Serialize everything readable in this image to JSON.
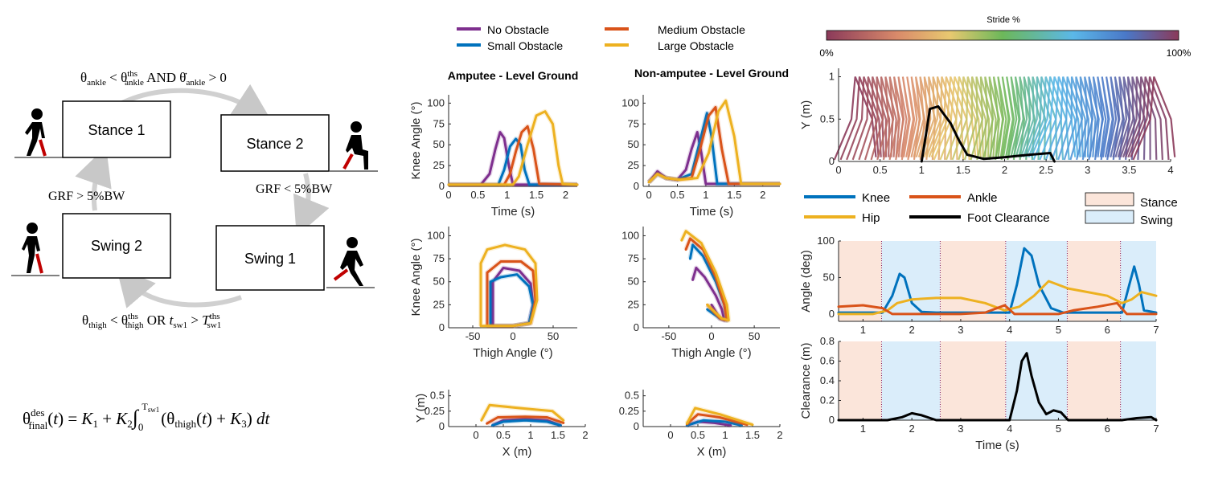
{
  "fsm": {
    "states": [
      "Stance 1",
      "Stance 2",
      "Swing 1",
      "Swing 2"
    ],
    "cond_top": "θankle < θthsankle AND θ̇ankle > 0",
    "cond_right": "GRF < 5%BW",
    "cond_left": "GRF > 5%BW",
    "cond_bottom": "θthigh < θthsthigh OR tsw1 > Tthssw1",
    "equation": "θdesfinal(t) = K1 + K2 ∫0Tsw1 (θthigh(t) + K3) dt"
  },
  "colors": {
    "no_obstacle": "#7E2F8E",
    "small_obstacle": "#0072BD",
    "medium_obstacle": "#D95319",
    "large_obstacle": "#EDB120",
    "knee": "#0072BD",
    "ankle": "#D95319",
    "hip": "#EDB120",
    "foot_clearance": "#000000",
    "stance": "#FBE5DA",
    "swing": "#DAEDFA"
  },
  "legend_obstacles": [
    "No Obstacle",
    "Medium Obstacle",
    "Small Obstacle",
    "Large Obstacle"
  ],
  "legend_joints": [
    "Knee",
    "Ankle",
    "Hip",
    "Foot Clearance"
  ],
  "legend_phase": [
    "Stance",
    "Swing"
  ],
  "chart_data": [
    {
      "id": "amp_time",
      "type": "line",
      "title": "Amputee - Level Ground",
      "xlabel": "Time (s)",
      "ylabel": "Knee Angle (°)",
      "xlim": [
        0,
        2.2
      ],
      "ylim": [
        0,
        110
      ],
      "xticks": [
        0,
        0.5,
        1,
        1.5,
        2
      ],
      "yticks": [
        0,
        25,
        50,
        75,
        100
      ],
      "series": [
        {
          "name": "No Obstacle",
          "x": [
            0,
            0.55,
            0.7,
            0.8,
            0.88,
            0.95,
            1.03,
            1.1,
            2.2
          ],
          "y": [
            2,
            2,
            15,
            45,
            65,
            58,
            25,
            2,
            2
          ]
        },
        {
          "name": "Small Obstacle",
          "x": [
            0,
            0.85,
            0.95,
            1.05,
            1.15,
            1.23,
            1.3,
            1.38,
            2.2
          ],
          "y": [
            2,
            2,
            20,
            48,
            57,
            50,
            20,
            2,
            2
          ]
        },
        {
          "name": "Medium Obstacle",
          "x": [
            0,
            0.95,
            1.05,
            1.15,
            1.25,
            1.35,
            1.45,
            1.55,
            2.2
          ],
          "y": [
            2,
            2,
            15,
            42,
            65,
            72,
            45,
            3,
            2
          ]
        },
        {
          "name": "Large Obstacle",
          "x": [
            0,
            1.1,
            1.2,
            1.35,
            1.5,
            1.65,
            1.78,
            1.88,
            1.95,
            2.2
          ],
          "y": [
            2,
            2,
            12,
            50,
            85,
            90,
            75,
            25,
            3,
            2
          ]
        }
      ]
    },
    {
      "id": "non_time",
      "type": "line",
      "title": "Non-amputee - Level Ground",
      "xlabel": "Time (s)",
      "ylabel": "",
      "xlim": [
        -0.1,
        2.3
      ],
      "ylim": [
        0,
        110
      ],
      "xticks": [
        0,
        0.5,
        1,
        1.5,
        2
      ],
      "yticks": [
        0,
        25,
        50,
        75,
        100
      ],
      "series": [
        {
          "name": "No Obstacle",
          "x": [
            0,
            0.15,
            0.3,
            0.5,
            0.65,
            0.75,
            0.85,
            0.92,
            1.0,
            2.3
          ],
          "y": [
            5,
            18,
            10,
            8,
            20,
            45,
            65,
            40,
            3,
            3
          ]
        },
        {
          "name": "Small Obstacle",
          "x": [
            0,
            0.15,
            0.3,
            0.5,
            0.75,
            0.9,
            1.02,
            1.1,
            1.2,
            2.3
          ],
          "y": [
            5,
            15,
            10,
            8,
            15,
            55,
            88,
            60,
            3,
            3
          ]
        },
        {
          "name": "Medium Obstacle",
          "x": [
            0,
            0.15,
            0.3,
            0.5,
            0.75,
            0.9,
            1.05,
            1.17,
            1.28,
            1.4,
            2.3
          ],
          "y": [
            5,
            15,
            10,
            8,
            10,
            45,
            85,
            95,
            45,
            3,
            3
          ]
        },
        {
          "name": "Large Obstacle",
          "x": [
            0,
            0.15,
            0.3,
            0.55,
            0.85,
            1.05,
            1.22,
            1.35,
            1.5,
            1.62,
            2.3
          ],
          "y": [
            5,
            15,
            10,
            8,
            10,
            40,
            90,
            103,
            60,
            3,
            3
          ]
        }
      ]
    },
    {
      "id": "amp_phase",
      "type": "line",
      "xlabel": "Thigh Angle (°)",
      "ylabel": "Knee Angle (°)",
      "xlim": [
        -80,
        80
      ],
      "ylim": [
        0,
        110
      ],
      "xticks": [
        -50,
        0,
        50
      ],
      "yticks": [
        0,
        25,
        50,
        75,
        100
      ],
      "series": [
        {
          "name": "No Obstacle",
          "x": [
            -25,
            -25,
            -12,
            8,
            22,
            25,
            20,
            0,
            -25
          ],
          "y": [
            2,
            50,
            65,
            62,
            48,
            25,
            5,
            2,
            2
          ]
        },
        {
          "name": "Small Obstacle",
          "x": [
            -28,
            -28,
            -15,
            5,
            20,
            25,
            20,
            0,
            -28
          ],
          "y": [
            2,
            50,
            55,
            58,
            45,
            25,
            5,
            2,
            2
          ]
        },
        {
          "name": "Medium Obstacle",
          "x": [
            -32,
            -32,
            -15,
            10,
            25,
            28,
            22,
            0,
            -32
          ],
          "y": [
            2,
            60,
            72,
            72,
            62,
            30,
            5,
            2,
            2
          ]
        },
        {
          "name": "Large Obstacle",
          "x": [
            -40,
            -40,
            -32,
            -10,
            15,
            28,
            30,
            22,
            0,
            -40
          ],
          "y": [
            2,
            70,
            85,
            90,
            85,
            70,
            30,
            5,
            2,
            2
          ]
        }
      ]
    },
    {
      "id": "non_phase",
      "type": "line",
      "xlabel": "Thigh Angle (°)",
      "ylabel": "",
      "xlim": [
        -80,
        80
      ],
      "ylim": [
        0,
        110
      ],
      "xticks": [
        -50,
        0,
        50
      ],
      "yticks": [
        0,
        25,
        50,
        75,
        100
      ],
      "series": [
        {
          "name": "No Obstacle",
          "x": [
            -22,
            -18,
            -8,
            5,
            12,
            15,
            10,
            0
          ],
          "y": [
            52,
            65,
            55,
            35,
            20,
            8,
            10,
            25
          ]
        },
        {
          "name": "Small Obstacle",
          "x": [
            -25,
            -22,
            -10,
            5,
            15,
            18,
            10,
            -5
          ],
          "y": [
            75,
            90,
            78,
            50,
            25,
            8,
            10,
            20
          ]
        },
        {
          "name": "Medium Obstacle",
          "x": [
            -30,
            -25,
            -10,
            5,
            15,
            18,
            10,
            -5
          ],
          "y": [
            85,
            97,
            85,
            55,
            25,
            8,
            10,
            25
          ]
        },
        {
          "name": "Large Obstacle",
          "x": [
            -35,
            -30,
            -12,
            5,
            18,
            20,
            12,
            -5
          ],
          "y": [
            95,
            105,
            92,
            60,
            25,
            8,
            10,
            25
          ]
        }
      ]
    },
    {
      "id": "amp_foot",
      "type": "line",
      "xlabel": "X (m)",
      "ylabel": "Y (m)",
      "xlim": [
        -0.5,
        2.0
      ],
      "ylim": [
        0,
        0.6
      ],
      "xticks": [
        0,
        0.5,
        1,
        1.5,
        2
      ],
      "yticks": [
        0,
        0.25,
        0.5
      ],
      "ytick_labels": [
        "0",
        "0.25",
        "0.5"
      ],
      "series": [
        {
          "name": "No Obstacle",
          "x": [
            0.3,
            0.5,
            0.9,
            1.3,
            1.55
          ],
          "y": [
            0.02,
            0.1,
            0.12,
            0.1,
            0.02
          ]
        },
        {
          "name": "Small Obstacle",
          "x": [
            0.3,
            0.5,
            0.9,
            1.3,
            1.55
          ],
          "y": [
            0.02,
            0.08,
            0.1,
            0.08,
            0.02
          ]
        },
        {
          "name": "Medium Obstacle",
          "x": [
            0.2,
            0.4,
            0.9,
            1.3,
            1.6
          ],
          "y": [
            0.05,
            0.15,
            0.16,
            0.15,
            0.06
          ]
        },
        {
          "name": "Large Obstacle",
          "x": [
            0.1,
            0.25,
            0.8,
            1.4,
            1.6
          ],
          "y": [
            0.1,
            0.35,
            0.3,
            0.25,
            0.1
          ]
        }
      ]
    },
    {
      "id": "non_foot",
      "type": "line",
      "xlabel": "X (m)",
      "ylabel": "",
      "xlim": [
        -0.5,
        2.0
      ],
      "ylim": [
        0,
        0.6
      ],
      "xticks": [
        0,
        0.5,
        1,
        1.5,
        2
      ],
      "yticks": [
        0,
        0.25,
        0.5
      ],
      "ytick_labels": [
        "0",
        "0.25",
        "0.5"
      ],
      "series": [
        {
          "name": "No Obstacle",
          "x": [
            0.3,
            0.5,
            0.8,
            1.1
          ],
          "y": [
            0.02,
            0.08,
            0.06,
            0.02
          ]
        },
        {
          "name": "Small Obstacle",
          "x": [
            0.3,
            0.6,
            1.0,
            1.3
          ],
          "y": [
            0.02,
            0.1,
            0.08,
            0.02
          ]
        },
        {
          "name": "Medium Obstacle",
          "x": [
            0.3,
            0.5,
            0.9,
            1.4
          ],
          "y": [
            0.04,
            0.2,
            0.15,
            0.03
          ]
        },
        {
          "name": "Large Obstacle",
          "x": [
            0.3,
            0.45,
            0.9,
            1.5
          ],
          "y": [
            0.05,
            0.3,
            0.2,
            0.03
          ]
        }
      ]
    },
    {
      "id": "stick",
      "type": "line",
      "title": "Stride %",
      "xlabel": "",
      "ylabel": "Y (m)",
      "colorbar_labels": [
        "0%",
        "100%"
      ],
      "xlim": [
        0,
        4.0
      ],
      "ylim": [
        0,
        1.1
      ],
      "xticks": [
        0,
        0.5,
        1,
        1.5,
        2,
        2.5,
        3,
        3.5,
        4
      ],
      "yticks": [
        0,
        0.5,
        1
      ],
      "series": [
        {
          "name": "Foot Clearance",
          "x": [
            1.0,
            1.05,
            1.1,
            1.2,
            1.35,
            1.45,
            1.55,
            1.75,
            2.0,
            2.3,
            2.55,
            2.6
          ],
          "y": [
            0.0,
            0.3,
            0.62,
            0.65,
            0.45,
            0.25,
            0.08,
            0.03,
            0.05,
            0.08,
            0.1,
            0.0
          ]
        }
      ]
    },
    {
      "id": "angles",
      "type": "line",
      "xlabel": "",
      "ylabel": "Angle (deg)",
      "xlim": [
        0.5,
        7.0
      ],
      "ylim": [
        -10,
        100
      ],
      "xticks": [
        1,
        2,
        3,
        4,
        5,
        6,
        7
      ],
      "yticks": [
        0,
        50,
        100
      ],
      "stance_spans": [
        [
          0.5,
          1.38
        ],
        [
          2.58,
          3.92
        ],
        [
          5.18,
          6.27
        ]
      ],
      "swing_spans": [
        [
          1.38,
          2.58
        ],
        [
          3.92,
          5.18
        ],
        [
          6.27,
          7.0
        ]
      ],
      "series": [
        {
          "name": "Knee",
          "x": [
            0.5,
            1.4,
            1.6,
            1.75,
            1.85,
            2.0,
            2.2,
            2.5,
            4.0,
            4.15,
            4.3,
            4.45,
            4.6,
            4.85,
            5.1,
            6.3,
            6.45,
            6.55,
            6.65,
            6.75,
            7.0
          ],
          "y": [
            2,
            2,
            25,
            55,
            50,
            15,
            3,
            2,
            2,
            40,
            90,
            80,
            40,
            8,
            2,
            2,
            40,
            65,
            40,
            5,
            2
          ]
        },
        {
          "name": "Hip",
          "x": [
            0.5,
            1.2,
            1.5,
            1.7,
            2.0,
            2.5,
            3.0,
            3.5,
            3.9,
            4.2,
            4.5,
            4.8,
            5.2,
            5.6,
            6.0,
            6.3,
            6.5,
            6.7,
            7.0
          ],
          "y": [
            0,
            0,
            5,
            15,
            20,
            22,
            22,
            15,
            5,
            10,
            25,
            45,
            35,
            30,
            25,
            15,
            20,
            30,
            25
          ]
        },
        {
          "name": "Ankle",
          "x": [
            0.5,
            1.0,
            1.4,
            1.6,
            2.0,
            2.5,
            3.0,
            3.5,
            3.9,
            4.1,
            4.5,
            5.0,
            5.3,
            5.8,
            6.2,
            6.4,
            7.0
          ],
          "y": [
            10,
            12,
            8,
            0,
            0,
            0,
            0,
            2,
            12,
            0,
            0,
            0,
            5,
            10,
            15,
            0,
            0
          ]
        }
      ]
    },
    {
      "id": "clearance",
      "type": "line",
      "xlabel": "Time (s)",
      "ylabel": "Clearance (m)",
      "xlim": [
        0.5,
        7.0
      ],
      "ylim": [
        0,
        0.8
      ],
      "xticks": [
        1,
        2,
        3,
        4,
        5,
        6,
        7
      ],
      "yticks": [
        0,
        0.2,
        0.4,
        0.6,
        0.8
      ],
      "stance_spans": [
        [
          0.5,
          1.38
        ],
        [
          2.58,
          3.92
        ],
        [
          5.18,
          6.27
        ]
      ],
      "swing_spans": [
        [
          1.38,
          2.58
        ],
        [
          3.92,
          5.18
        ],
        [
          6.27,
          7.0
        ]
      ],
      "series": [
        {
          "name": "Foot Clearance",
          "x": [
            0.5,
            1.5,
            1.8,
            2.0,
            2.2,
            2.5,
            4.0,
            4.15,
            4.25,
            4.35,
            4.45,
            4.6,
            4.75,
            4.9,
            5.05,
            5.2,
            6.3,
            6.6,
            6.9,
            7.0
          ],
          "y": [
            0,
            0,
            0.03,
            0.07,
            0.05,
            0,
            0,
            0.3,
            0.6,
            0.68,
            0.45,
            0.18,
            0.06,
            0.1,
            0.08,
            0,
            0,
            0.02,
            0.03,
            0
          ]
        }
      ]
    }
  ]
}
